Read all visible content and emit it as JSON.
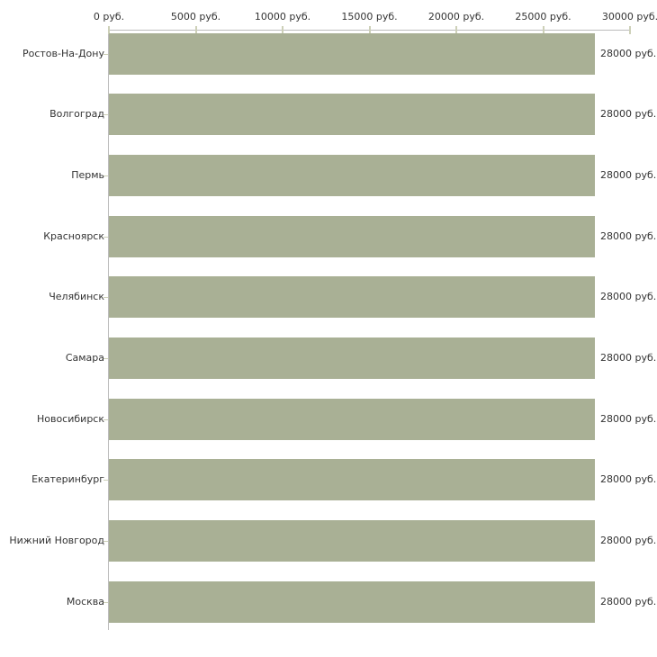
{
  "chart_data": {
    "type": "bar",
    "orientation": "horizontal",
    "title": "",
    "categories": [
      "Ростов-На-Дону",
      "Волгоград",
      "Пермь",
      "Красноярск",
      "Челябинск",
      "Самара",
      "Новосибирск",
      "Екатеринбург",
      "Нижний Новгород",
      "Москва"
    ],
    "values": [
      28000,
      28000,
      28000,
      28000,
      28000,
      28000,
      28000,
      28000,
      28000,
      28000
    ],
    "value_labels": [
      "28000 руб.",
      "28000 руб.",
      "28000 руб.",
      "28000 руб.",
      "28000 руб.",
      "28000 руб.",
      "28000 руб.",
      "28000 руб.",
      "28000 руб.",
      "28000 руб."
    ],
    "x_axis": {
      "position": "top",
      "min": 0,
      "max": 30000,
      "tick_step": 5000,
      "tick_labels": [
        "0 руб.",
        "5000 руб.",
        "10000 руб.",
        "15000 руб.",
        "20000 руб.",
        "25000 руб.",
        "30000 руб."
      ]
    },
    "grid": false,
    "legend": false,
    "colors": {
      "bar_fill": "#a9b095",
      "axis_line": "#bcbcbc",
      "tick_mark": "#cdd0b8",
      "text": "#333333",
      "background": "#ffffff"
    }
  }
}
